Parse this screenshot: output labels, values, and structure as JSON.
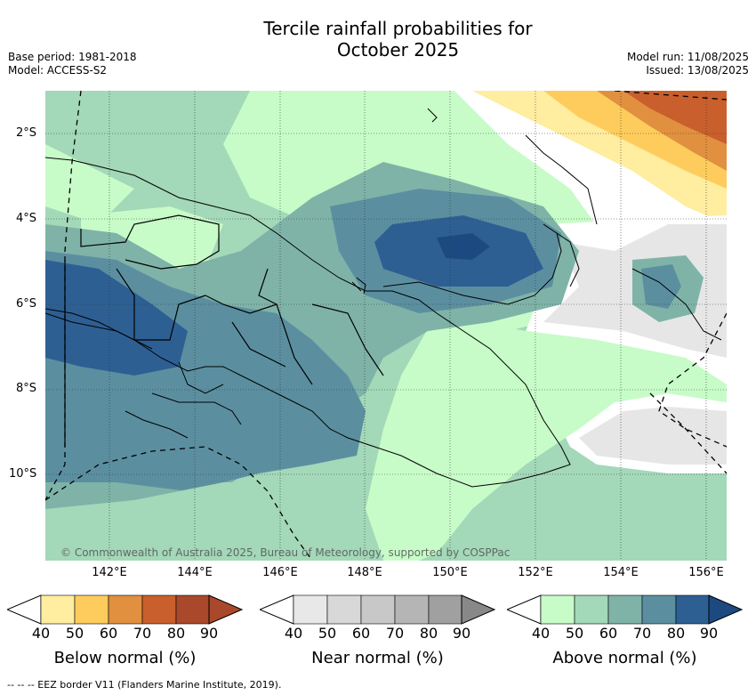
{
  "title_line1": "Tercile rainfall probabilities for",
  "title_line2": "October 2025",
  "base_period": "Base period: 1981-2018",
  "model": "Model: ACCESS-S2",
  "model_run": "Model run: 11/08/2025",
  "issued": "Issued: 13/08/2025",
  "latitudes": [
    "2°S",
    "4°S",
    "6°S",
    "8°S",
    "10°S"
  ],
  "longitudes": [
    "142°E",
    "144°E",
    "146°E",
    "148°E",
    "150°E",
    "152°E",
    "154°E",
    "156°E"
  ],
  "copyright": "© Commonwealth of Australia 2025, Bureau of Meteorology, supported by COSPPac",
  "legends": [
    {
      "title": "Below normal (%)",
      "ticks": [
        "40",
        "50",
        "60",
        "70",
        "80",
        "90"
      ],
      "colors": [
        "#ffeda0",
        "#fecc5c",
        "#e0903f",
        "#c95f2c",
        "#a9482a",
        "#a9482a"
      ]
    },
    {
      "title": "Near normal (%)",
      "ticks": [
        "40",
        "50",
        "60",
        "70",
        "80",
        "90"
      ],
      "colors": [
        "#e8e8e8",
        "#d8d8d8",
        "#c8c8c8",
        "#b5b5b5",
        "#a0a0a0",
        "#888888"
      ]
    },
    {
      "title": "Above normal (%)",
      "ticks": [
        "40",
        "50",
        "60",
        "70",
        "80",
        "90"
      ],
      "colors": [
        "#c7fcc8",
        "#a3d8b8",
        "#7fb3a8",
        "#5b8fa0",
        "#2e5f93",
        "#1c4a80"
      ]
    }
  ],
  "footnote": "--  --  -- EEZ border V11 (Flanders Marine Institute, 2019)."
}
